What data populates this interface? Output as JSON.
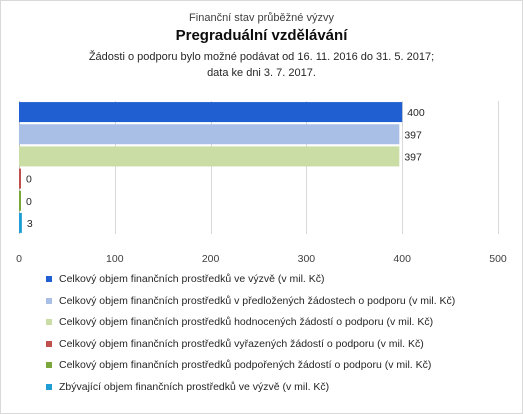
{
  "header": {
    "pretitle": "Finanční stav průběžné výzvy",
    "title": "Pregraduální vzdělávání",
    "subtitle_line1": "Žádosti o podporu bylo možné  podávat od 16. 11. 2016 do  31. 5. 2017;",
    "subtitle_line2": "data ke dni 3. 7. 2017."
  },
  "chart_data": {
    "type": "bar",
    "orientation": "horizontal",
    "title": "Pregraduální vzdělávání",
    "xlim": [
      0,
      500
    ],
    "x_ticks": [
      0,
      100,
      200,
      300,
      400,
      500
    ],
    "grid": true,
    "legend_position": "bottom",
    "data_labels": true,
    "series": [
      {
        "name": "Celkový objem finančních prostředků ve výzvě (v mil. Kč)",
        "value": 400,
        "color": "#1f5fd1"
      },
      {
        "name": "Celkový objem finančních prostředků v předložených žádostech o podporu (v mil. Kč)",
        "value": 397,
        "color": "#a9bfe6"
      },
      {
        "name": "Celkový objem finančních prostředků hodnocených žádostí o podporu (v mil. Kč)",
        "value": 397,
        "color": "#c9dda4"
      },
      {
        "name": "Celkový objem finančních prostředků vyřazených žádostí o podporu (v mil. Kč)",
        "value": 0,
        "color": "#c0504d"
      },
      {
        "name": "Celkový objem finančních prostředků podpořených žádostí o podporu (v mil. Kč)",
        "value": 0,
        "color": "#7aa63a"
      },
      {
        "name": "Zbývající objem finančních prostředků ve výzvě (v mil. Kč)",
        "value": 3,
        "color": "#1f9ed6"
      }
    ]
  }
}
